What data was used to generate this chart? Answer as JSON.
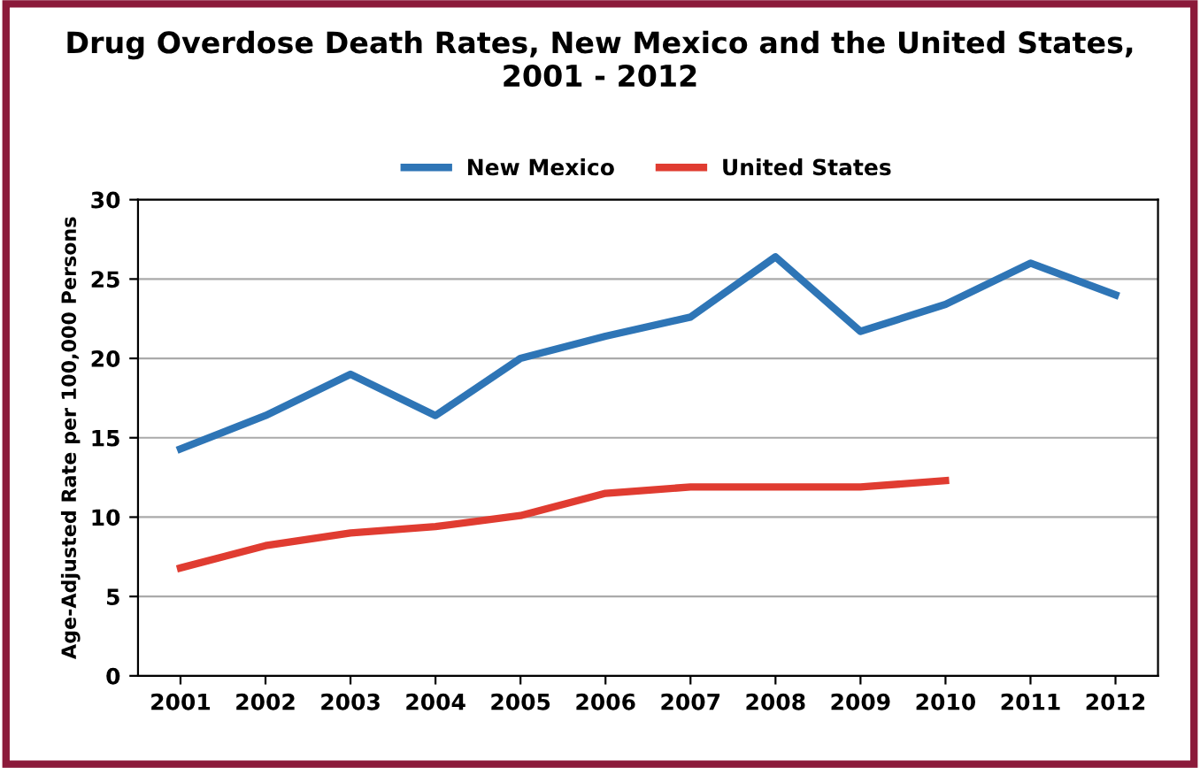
{
  "chart_data": {
    "type": "line",
    "title": "Drug Overdose Death Rates, New Mexico and the United States,\n2001 - 2012",
    "ylabel": "Age-Adjusted Rate per 100,000 Persons",
    "categories": [
      "2001",
      "2002",
      "2003",
      "2004",
      "2005",
      "2006",
      "2007",
      "2008",
      "2009",
      "2010",
      "2011",
      "2012"
    ],
    "series": [
      {
        "name": "New Mexico",
        "color": "#2e75b6",
        "values": [
          14.3,
          16.4,
          19.0,
          16.4,
          20.0,
          21.4,
          22.6,
          26.4,
          21.7,
          23.4,
          26.0,
          24.0
        ]
      },
      {
        "name": "United States",
        "color": "#e03c31",
        "values": [
          6.8,
          8.2,
          9.0,
          9.4,
          10.1,
          11.5,
          11.9,
          11.9,
          11.9,
          12.3,
          null,
          null
        ]
      }
    ],
    "ylim": [
      0,
      30
    ],
    "yticks": [
      0,
      5,
      10,
      15,
      20,
      25,
      30
    ],
    "grid": "y",
    "legend": "top",
    "marker": "none",
    "line_style": "solid"
  }
}
